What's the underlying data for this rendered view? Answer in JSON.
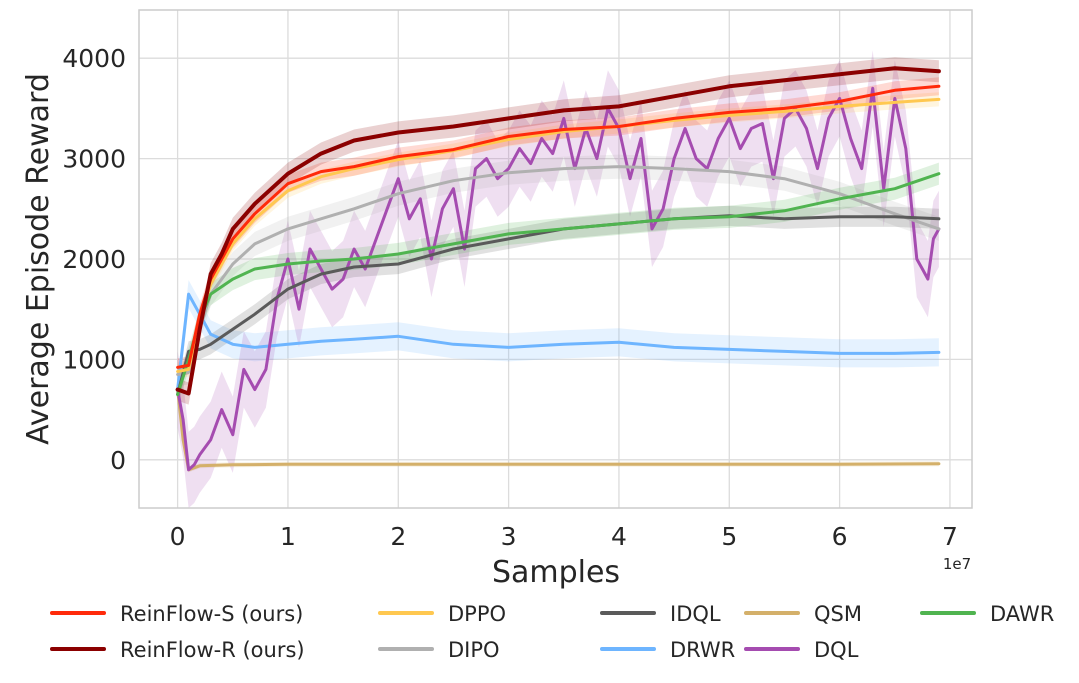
{
  "chart_data": {
    "type": "line",
    "title": "",
    "xlabel": "Samples",
    "ylabel": "Average Episode Reward",
    "x_scale_label": "1e7",
    "xlim": [
      -0.35,
      7.2
    ],
    "ylim": [
      -480,
      4480
    ],
    "xticks": [
      0,
      1,
      2,
      3,
      4,
      5,
      6,
      7
    ],
    "xtick_labels": [
      "0",
      "1",
      "2",
      "3",
      "4",
      "5",
      "6",
      "7"
    ],
    "yticks": [
      0,
      1000,
      2000,
      3000,
      4000
    ],
    "ytick_labels": [
      "0",
      "1000",
      "2000",
      "3000",
      "4000"
    ],
    "grid": true,
    "legend_position": "bottom",
    "series": [
      {
        "name": "ReinFlow-S (ours)",
        "color": "#ff2a0a",
        "band": 90,
        "x": [
          0,
          0.1,
          0.2,
          0.3,
          0.5,
          0.7,
          1.0,
          1.3,
          1.6,
          2.0,
          2.5,
          3.0,
          3.5,
          4.0,
          4.5,
          5.0,
          5.5,
          6.0,
          6.5,
          6.9
        ],
        "y": [
          920,
          940,
          1450,
          1800,
          2200,
          2450,
          2750,
          2870,
          2920,
          3020,
          3090,
          3220,
          3290,
          3320,
          3400,
          3460,
          3500,
          3570,
          3680,
          3720
        ]
      },
      {
        "name": "ReinFlow-R (ours)",
        "color": "#8b0000",
        "band": 110,
        "x": [
          0,
          0.1,
          0.2,
          0.3,
          0.4,
          0.5,
          0.7,
          1.0,
          1.3,
          1.6,
          2.0,
          2.5,
          3.0,
          3.5,
          4.0,
          4.5,
          5.0,
          5.5,
          6.0,
          6.5,
          6.9
        ],
        "y": [
          700,
          660,
          1300,
          1850,
          2050,
          2300,
          2550,
          2850,
          3050,
          3180,
          3260,
          3320,
          3400,
          3480,
          3520,
          3620,
          3720,
          3780,
          3840,
          3900,
          3870
        ]
      },
      {
        "name": "DPPO",
        "color": "#ffc850",
        "band": 70,
        "x": [
          0,
          0.1,
          0.2,
          0.3,
          0.5,
          0.7,
          1.0,
          1.3,
          1.6,
          2.0,
          2.5,
          3.0,
          3.5,
          4.0,
          4.5,
          5.0,
          5.5,
          6.0,
          6.5,
          6.9
        ],
        "y": [
          880,
          900,
          1400,
          1750,
          2150,
          2400,
          2680,
          2820,
          2900,
          2990,
          3080,
          3190,
          3270,
          3320,
          3380,
          3430,
          3470,
          3520,
          3560,
          3590
        ]
      },
      {
        "name": "DIPO",
        "color": "#b0b0b0",
        "band": 120,
        "x": [
          0,
          0.1,
          0.2,
          0.3,
          0.5,
          0.7,
          1.0,
          1.3,
          1.6,
          2.0,
          2.5,
          3.0,
          3.5,
          4.0,
          4.5,
          5.0,
          5.5,
          6.0,
          6.5,
          6.9
        ],
        "y": [
          850,
          870,
          1300,
          1650,
          1950,
          2150,
          2300,
          2400,
          2500,
          2650,
          2780,
          2860,
          2900,
          2920,
          2900,
          2870,
          2800,
          2650,
          2450,
          2300
        ]
      },
      {
        "name": "IDQL",
        "color": "#5a5a5a",
        "band": 100,
        "x": [
          0,
          0.1,
          0.2,
          0.3,
          0.5,
          0.7,
          1.0,
          1.3,
          1.6,
          2.0,
          2.5,
          3.0,
          3.5,
          4.0,
          4.5,
          5.0,
          5.5,
          6.0,
          6.5,
          6.9
        ],
        "y": [
          650,
          1080,
          1100,
          1150,
          1300,
          1450,
          1700,
          1850,
          1920,
          1950,
          2100,
          2200,
          2300,
          2350,
          2400,
          2430,
          2400,
          2420,
          2420,
          2400
        ]
      },
      {
        "name": "DRWR",
        "color": "#6eb5ff",
        "band": 140,
        "x": [
          0,
          0.1,
          0.2,
          0.3,
          0.5,
          0.7,
          1.0,
          1.3,
          1.6,
          2.0,
          2.5,
          3.0,
          3.5,
          4.0,
          4.5,
          5.0,
          5.5,
          6.0,
          6.5,
          6.9
        ],
        "y": [
          700,
          1650,
          1450,
          1250,
          1150,
          1120,
          1150,
          1180,
          1200,
          1230,
          1150,
          1120,
          1150,
          1170,
          1120,
          1100,
          1080,
          1060,
          1060,
          1070
        ]
      },
      {
        "name": "QSM",
        "color": "#d4b06a",
        "band": 25,
        "x": [
          0,
          0.05,
          0.1,
          0.2,
          0.5,
          1.0,
          2.0,
          3.0,
          4.0,
          5.0,
          6.0,
          6.9
        ],
        "y": [
          700,
          200,
          -100,
          -60,
          -50,
          -45,
          -45,
          -45,
          -45,
          -45,
          -45,
          -40
        ]
      },
      {
        "name": "DQL",
        "color": "#a54cb0",
        "band": 380,
        "x": [
          0,
          0.05,
          0.1,
          0.15,
          0.2,
          0.3,
          0.4,
          0.5,
          0.6,
          0.7,
          0.8,
          0.9,
          1.0,
          1.1,
          1.2,
          1.3,
          1.4,
          1.5,
          1.6,
          1.7,
          1.8,
          1.9,
          2.0,
          2.1,
          2.2,
          2.3,
          2.4,
          2.5,
          2.6,
          2.7,
          2.8,
          2.9,
          3.0,
          3.1,
          3.2,
          3.3,
          3.4,
          3.5,
          3.6,
          3.7,
          3.8,
          3.9,
          4.0,
          4.1,
          4.2,
          4.3,
          4.4,
          4.5,
          4.6,
          4.7,
          4.8,
          4.9,
          5.0,
          5.1,
          5.2,
          5.3,
          5.4,
          5.5,
          5.6,
          5.7,
          5.8,
          5.9,
          6.0,
          6.1,
          6.2,
          6.3,
          6.4,
          6.5,
          6.6,
          6.7,
          6.75,
          6.8,
          6.85,
          6.9
        ],
        "y": [
          700,
          400,
          -100,
          -50,
          50,
          200,
          500,
          250,
          900,
          700,
          900,
          1600,
          2000,
          1500,
          2100,
          1900,
          1700,
          1800,
          2100,
          1900,
          2200,
          2500,
          2800,
          2400,
          2600,
          2000,
          2500,
          2700,
          2100,
          2900,
          3000,
          2800,
          2900,
          3100,
          2950,
          3200,
          3050,
          3400,
          2900,
          3300,
          3000,
          3500,
          3300,
          2800,
          3200,
          2300,
          2500,
          3000,
          3300,
          3000,
          2900,
          3200,
          3400,
          3100,
          3300,
          3350,
          2800,
          3400,
          3500,
          3300,
          2900,
          3400,
          3600,
          3200,
          2900,
          3700,
          2700,
          3600,
          3100,
          2000,
          1900,
          1800,
          2200,
          2300
        ]
      },
      {
        "name": "DAWR",
        "color": "#50b450",
        "band": 110,
        "x": [
          0,
          0.1,
          0.2,
          0.3,
          0.5,
          0.7,
          1.0,
          1.3,
          1.6,
          2.0,
          2.5,
          3.0,
          3.5,
          4.0,
          4.5,
          5.0,
          5.5,
          6.0,
          6.5,
          6.9
        ],
        "y": [
          650,
          1000,
          1400,
          1650,
          1800,
          1900,
          1950,
          1980,
          2000,
          2050,
          2150,
          2250,
          2300,
          2350,
          2400,
          2420,
          2480,
          2600,
          2700,
          2850
        ]
      }
    ]
  }
}
